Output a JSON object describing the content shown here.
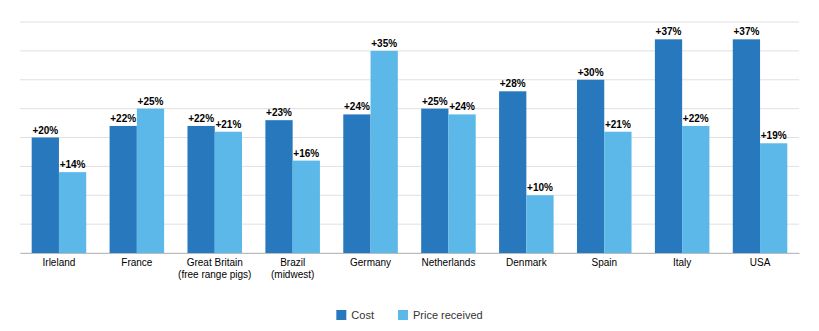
{
  "chart_data": {
    "type": "bar",
    "categories": [
      "Irleland",
      "France",
      "Great Britain\n(free range pigs)",
      "Brazil\n(midwest)",
      "Germany",
      "Netherlands",
      "Denmark",
      "Spain",
      "Italy",
      "USA"
    ],
    "series": [
      {
        "name": "Cost",
        "color": "#2878BE",
        "values": [
          20,
          22,
          22,
          23,
          24,
          25,
          28,
          30,
          37,
          37
        ],
        "value_labels": [
          "+20%",
          "+22%",
          "+22%",
          "+23%",
          "+24%",
          "+25%",
          "+28%",
          "+30%",
          "+37%",
          "+37%"
        ]
      },
      {
        "name": "Price received",
        "color": "#5BB8E8",
        "values": [
          14,
          25,
          21,
          16,
          35,
          24,
          10,
          21,
          22,
          19
        ],
        "value_labels": [
          "+14%",
          "+25%",
          "+21%",
          "+16%",
          "+35%",
          "+24%",
          "+10%",
          "+21%",
          "+22%",
          "+19%"
        ]
      }
    ],
    "ylim": [
      0,
      40
    ],
    "yticks": [
      0,
      5,
      10,
      15,
      20,
      25,
      30,
      35,
      40
    ],
    "grid": true,
    "legend": "bottom",
    "data_labels": true,
    "tick_labels": "x"
  }
}
